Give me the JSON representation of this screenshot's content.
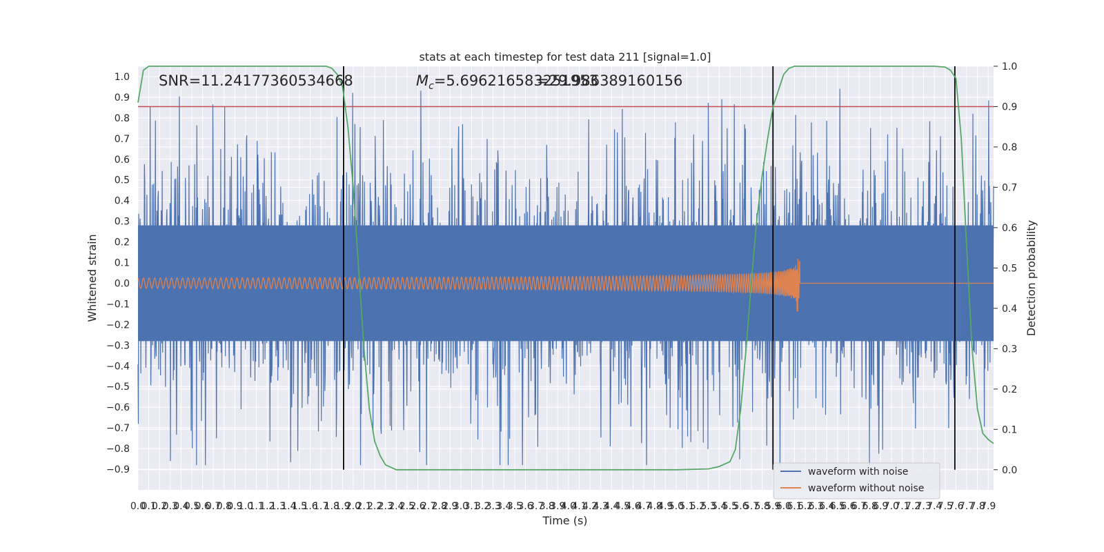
{
  "chart_data": {
    "type": "line",
    "title": "stats at each timestep for test data 211 [signal=1.0]",
    "xlabel": "Time (s)",
    "ylabel_left": "Whitened strain",
    "ylabel_right": "Detection probability",
    "xlim": [
      0,
      7.95
    ],
    "ylim_left": [
      -1.0,
      1.05
    ],
    "ylim_right": [
      -0.05,
      1.0
    ],
    "x_ticks": [
      "0.0",
      "0.1",
      "0.2",
      "0.3",
      "0.4",
      "0.5",
      "0.6",
      "0.7",
      "0.8",
      "0.9",
      "1.0",
      "1.1",
      "1.2",
      "1.3",
      "1.4",
      "1.5",
      "1.6",
      "1.7",
      "1.8",
      "1.9",
      "2.0",
      "2.1",
      "2.2",
      "2.3",
      "2.4",
      "2.5",
      "2.6",
      "2.7",
      "2.8",
      "2.9",
      "3.0",
      "3.1",
      "3.2",
      "3.3",
      "3.4",
      "3.5",
      "3.6",
      "3.7",
      "3.8",
      "3.9",
      "4.0",
      "4.1",
      "4.2",
      "4.3",
      "4.4",
      "4.5",
      "4.6",
      "4.7",
      "4.8",
      "4.9",
      "5.0",
      "5.1",
      "5.2",
      "5.3",
      "5.4",
      "5.5",
      "5.6",
      "5.7",
      "5.8",
      "5.9",
      "6.0",
      "6.1",
      "6.2",
      "6.3",
      "6.4",
      "6.5",
      "6.6",
      "6.7",
      "6.8",
      "6.9",
      "7.0",
      "7.1",
      "7.2",
      "7.3",
      "7.4",
      "7.5",
      "7.6",
      "7.7",
      "7.8",
      "7.9"
    ],
    "y_ticks_left": [
      "-0.9",
      "-0.8",
      "-0.7",
      "-0.6",
      "-0.5",
      "-0.4",
      "-0.3",
      "-0.2",
      "-0.1",
      "0.0",
      "0.1",
      "0.2",
      "0.3",
      "0.4",
      "0.5",
      "0.6",
      "0.7",
      "0.8",
      "0.9",
      "1.0"
    ],
    "y_ticks_right": [
      "0.0",
      "0.1",
      "0.2",
      "0.3",
      "0.4",
      "0.5",
      "0.6",
      "0.7",
      "0.8",
      "0.9",
      "1.0"
    ],
    "annotations": {
      "snr": "SNR=11.24177360534668",
      "mc_label": "M",
      "mc_sub": "c",
      "mc_value": "=5.696216583251953",
      "third": "=29.986389160156"
    },
    "threshold": {
      "value": 0.9,
      "axis": "right",
      "color": "#c44e52"
    },
    "vertical_lines": [
      1.91,
      5.9,
      7.59
    ],
    "series": [
      {
        "name": "waveform with noise",
        "color": "#4c72b0",
        "axis": "left",
        "noise_amplitude_typical": 0.4,
        "noise_peak_max": 1.0,
        "x_range": [
          0,
          7.95
        ]
      },
      {
        "name": "waveform without noise",
        "color": "#dd8452",
        "axis": "left",
        "chirp": {
          "start_amplitude": 0.025,
          "peak_amplitude_pos": 0.23,
          "peak_amplitude_neg": -0.35,
          "merger_time": 6.15,
          "end_time": 7.95
        }
      },
      {
        "name": "Detection probability",
        "color": "#55a868",
        "axis": "right",
        "x": [
          0.0,
          0.05,
          0.1,
          0.2,
          0.5,
          1.0,
          1.5,
          1.75,
          1.8,
          1.85,
          1.9,
          1.95,
          2.0,
          2.05,
          2.1,
          2.15,
          2.2,
          2.25,
          2.3,
          2.4,
          2.5,
          3.0,
          4.0,
          5.0,
          5.3,
          5.4,
          5.5,
          5.55,
          5.6,
          5.65,
          5.7,
          5.75,
          5.8,
          5.85,
          5.9,
          5.95,
          6.0,
          6.05,
          6.1,
          6.2,
          6.5,
          7.0,
          7.4,
          7.5,
          7.55,
          7.6,
          7.65,
          7.7,
          7.75,
          7.8,
          7.85,
          7.9,
          7.95
        ],
        "y": [
          0.91,
          0.99,
          1.0,
          1.0,
          1.0,
          1.0,
          1.0,
          1.0,
          0.995,
          0.98,
          0.95,
          0.85,
          0.7,
          0.5,
          0.3,
          0.15,
          0.07,
          0.035,
          0.012,
          0.0,
          0.0,
          0.0,
          0.0,
          0.0,
          0.002,
          0.008,
          0.02,
          0.05,
          0.15,
          0.3,
          0.47,
          0.62,
          0.73,
          0.82,
          0.9,
          0.94,
          0.98,
          0.995,
          1.0,
          1.0,
          1.0,
          1.0,
          1.0,
          0.998,
          0.99,
          0.97,
          0.82,
          0.55,
          0.3,
          0.15,
          0.09,
          0.075,
          0.065
        ]
      }
    ],
    "legend": {
      "position": "lower-right",
      "entries": [
        "waveform with noise",
        "waveform without noise"
      ]
    }
  },
  "colors": {
    "plot_bg": "#eaeaf2",
    "grid": "#ffffff",
    "noise": "#4c72b0",
    "clean": "#dd8452",
    "prob": "#55a868",
    "threshold": "#c44e52",
    "vline": "#000000"
  }
}
